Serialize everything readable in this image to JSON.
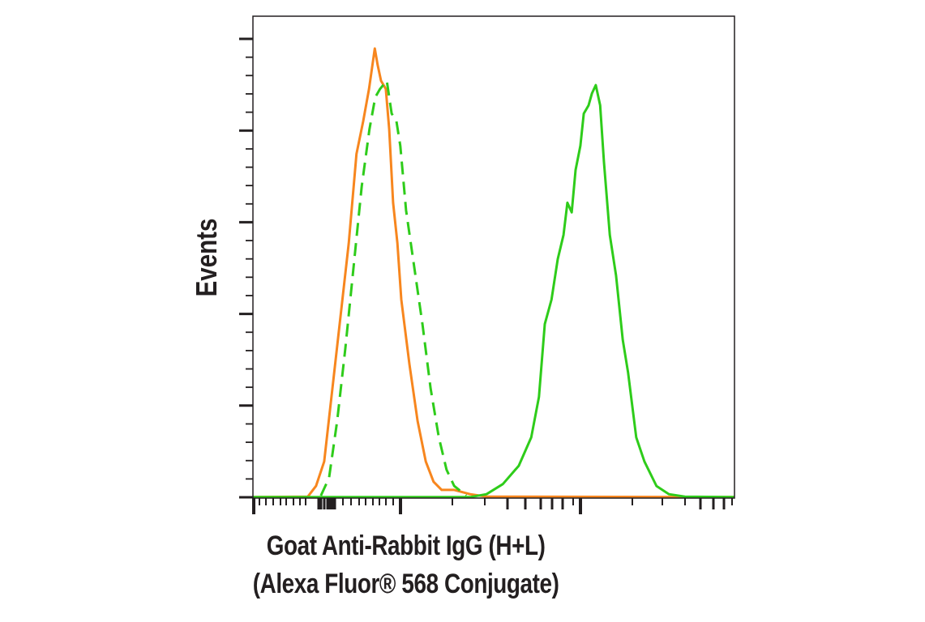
{
  "chart_data": {
    "type": "line",
    "xlabel_line1": "Goat Anti-Rabbit IgG (H+L)",
    "xlabel_line2": "(Alexa Fluor® 568 Conjugate)",
    "ylabel": "Events",
    "x_scale": "log",
    "xlim": [
      0,
      1000
    ],
    "ylim": [
      0,
      100
    ],
    "grid": false,
    "legend": "none",
    "series": [
      {
        "color": "#f7861e",
        "style": "solid",
        "x": [
          0,
          114,
          131,
          148,
          165,
          182,
          199,
          215,
          229,
          241,
          253,
          259,
          266,
          276,
          283,
          291,
          300,
          308,
          325,
          342,
          359,
          375,
          392,
          418,
          451,
          485,
          1000
        ],
        "y": [
          0.2,
          0.3,
          2.5,
          7.6,
          22.7,
          37.8,
          52.9,
          71.4,
          78.2,
          84.9,
          93.3,
          89.9,
          86.6,
          84.9,
          76.5,
          61.3,
          52.9,
          41.2,
          27.7,
          16.0,
          7.6,
          3.4,
          1.7,
          1.7,
          0.8,
          0.3,
          0.2
        ]
      },
      {
        "color": "#2ecc1a",
        "style": "dashed",
        "x": [
          141,
          158,
          175,
          192,
          209,
          226,
          242,
          254,
          264,
          278,
          288,
          298,
          306,
          318,
          335,
          352,
          369,
          386,
          402,
          418,
          443
        ],
        "y": [
          0.5,
          4.2,
          16.0,
          31.1,
          47.9,
          64.7,
          76.5,
          83.2,
          84.9,
          86.6,
          79.8,
          78.2,
          73.1,
          59.7,
          47.9,
          36.1,
          22.7,
          12.6,
          5.9,
          2.5,
          0.5
        ]
      },
      {
        "color": "#2ecc1a",
        "style": "solid",
        "x": [
          0,
          451,
          485,
          519,
          552,
          578,
          594,
          606,
          620,
          633,
          645,
          653,
          662,
          670,
          680,
          687,
          697,
          704,
          712,
          721,
          729,
          741,
          754,
          768,
          779,
          796,
          813,
          838,
          864,
          897,
          1000
        ],
        "y": [
          0.2,
          0.2,
          0.8,
          2.9,
          6.7,
          12.6,
          21.0,
          36.1,
          41.2,
          49.6,
          54.6,
          61.3,
          59.3,
          68.1,
          73.1,
          79.8,
          81.5,
          84.0,
          85.7,
          81.5,
          69.7,
          54.6,
          46.2,
          32.8,
          26.1,
          12.6,
          7.6,
          2.5,
          0.8,
          0.3,
          0.2
        ]
      }
    ]
  }
}
